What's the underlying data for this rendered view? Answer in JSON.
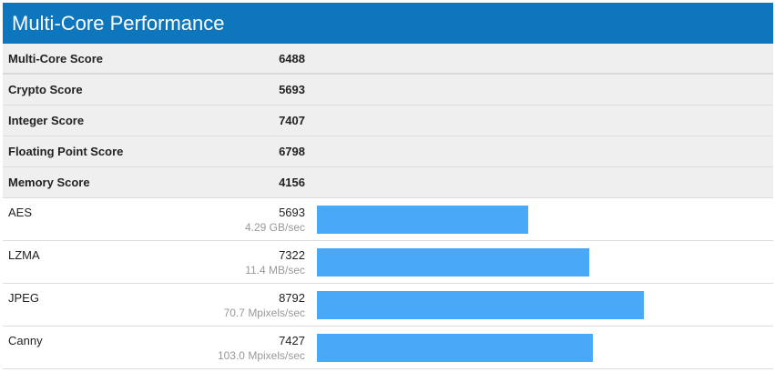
{
  "header": {
    "title": "Multi-Core Performance"
  },
  "colors": {
    "header_bg": "#0e76bc",
    "bar": "#4aa8f8"
  },
  "summary": [
    {
      "label": "Multi-Core Score",
      "value": "6488"
    },
    {
      "label": "Crypto Score",
      "value": "5693"
    },
    {
      "label": "Integer Score",
      "value": "7407"
    },
    {
      "label": "Floating Point Score",
      "value": "6798"
    },
    {
      "label": "Memory Score",
      "value": "4156"
    }
  ],
  "scale_max": 12000,
  "benchmarks": [
    {
      "name": "AES",
      "score": "5693",
      "rate": "4.29 GB/sec",
      "value": 5693
    },
    {
      "name": "LZMA",
      "score": "7322",
      "rate": "11.4 MB/sec",
      "value": 7322
    },
    {
      "name": "JPEG",
      "score": "8792",
      "rate": "70.7 Mpixels/sec",
      "value": 8792
    },
    {
      "name": "Canny",
      "score": "7427",
      "rate": "103.0 Mpixels/sec",
      "value": 7427
    }
  ]
}
